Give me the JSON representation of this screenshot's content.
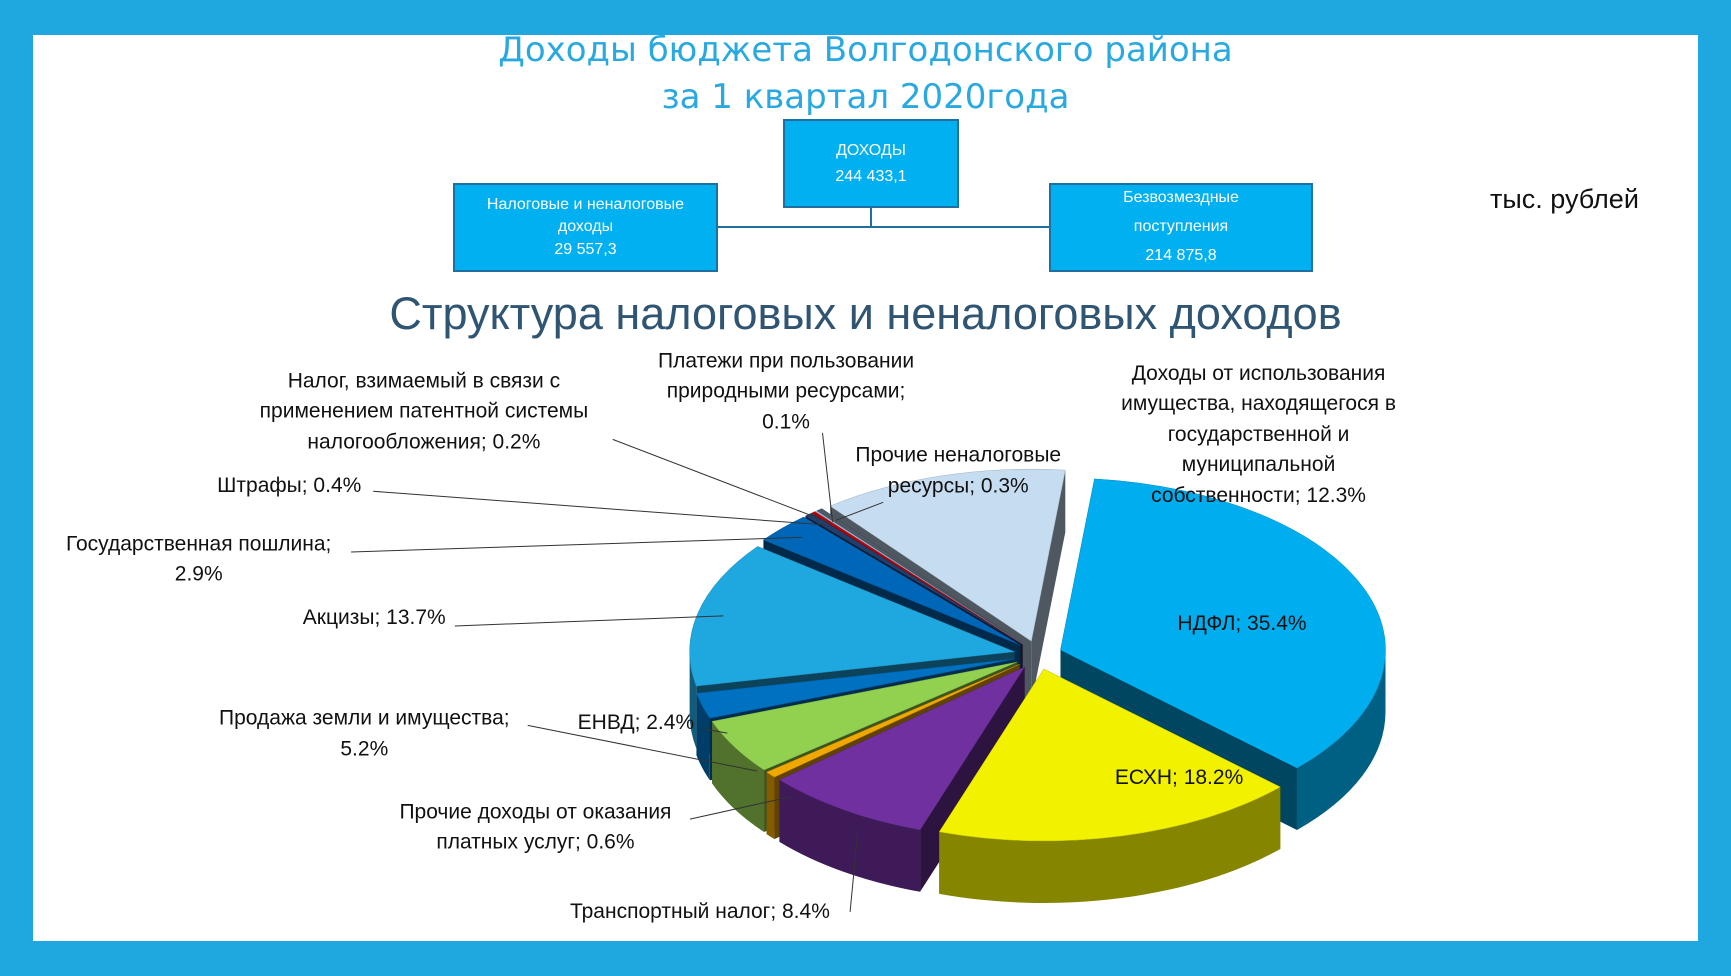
{
  "header": {
    "title": [
      "Доходы бюджета Волгодонского района",
      "за 1 квартал 2020года"
    ],
    "boxes": {
      "total": {
        "label": "ДОХОДЫ",
        "value": "244 433,1"
      },
      "tax": {
        "label": "Налоговые и неналоговые\nдоходы",
        "value": "29 557,3"
      },
      "grant": {
        "label": "Безвозмездные\nпоступления",
        "value": "214 875,8"
      }
    },
    "unit": "тыс. рублей"
  },
  "chart_data": {
    "type": "pie",
    "title": "Структура налоговых и неналоговых доходов",
    "values": [
      35.4,
      18.2,
      8.4,
      0.6,
      5.2,
      2.4,
      13.7,
      2.9,
      0.4,
      0.2,
      0.1,
      0.3,
      12.3
    ],
    "value_labels": [
      "НДФЛ; 35.4%",
      "ЕСХН; 18.2%",
      "Транспортный налог; 8.4%",
      "Прочие доходы от оказания\nплатных услуг; 0.6%",
      "Продажа земли и имущества;\n5.2%",
      "ЕНВД; 2.4%",
      "Акцизы; 13.7%",
      "Государственная пошлина;\n2.9%",
      "Штрафы; 0.4%",
      "Налог, взимаемый в связи с\nприменением патентной системы\nналогообложения; 0.2%",
      "Платежи при пользовании\nприродными ресурсами;\n0.1%",
      "Прочие неналоговые\nресурсы; 0.3%",
      "Доходы от использования\nимущества, находящегося в\nгосударственной и\nмуниципальной\nсобственности; 12.3%"
    ],
    "colors": [
      "#00aeef",
      "#f2f200",
      "#7030a0",
      "#f0a800",
      "#92d050",
      "#0070c0",
      "#1fa8e0",
      "#0066b8",
      "#1f3f6e",
      "#c00000",
      "#9dc3e6",
      "#4d5a66",
      "#c6dcf0"
    ]
  }
}
